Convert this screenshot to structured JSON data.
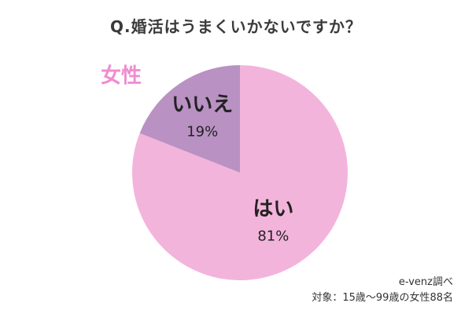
{
  "chart_data": {
    "type": "pie",
    "title": "Q.婚活はうまくいかないですか？",
    "group_label": "女性",
    "slices": [
      {
        "label": "はい",
        "value": 81,
        "value_text": "81%",
        "color": "#f3b4dc"
      },
      {
        "label": "いいえ",
        "value": 19,
        "value_text": "19%",
        "color": "#b991c3"
      }
    ],
    "legend": "none"
  },
  "colors": {
    "group_label": "#f08cd0",
    "title": "#3a3a3a"
  },
  "source": {
    "line1": "e-venz調べ",
    "line2": "対象：15歳〜99歳の女性88名"
  }
}
